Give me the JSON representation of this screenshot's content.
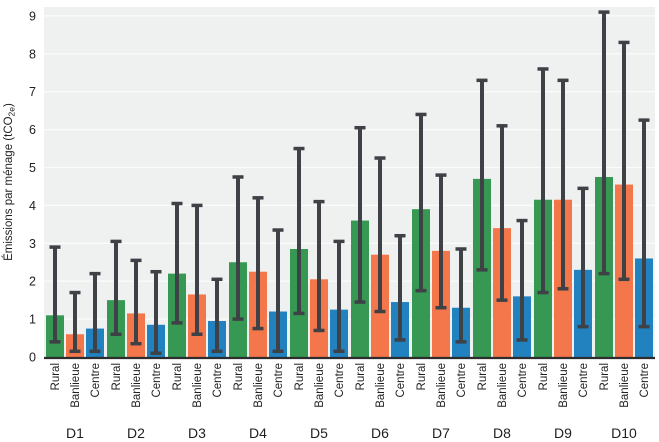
{
  "chart_data": {
    "type": "bar",
    "title": "",
    "ylabel_prefix": "Émissions par ménage (tCO",
    "ylabel_sub": "2e",
    "ylabel_suffix": ")",
    "categories": [
      "D1",
      "D2",
      "D3",
      "D4",
      "D5",
      "D6",
      "D7",
      "D8",
      "D9",
      "D10"
    ],
    "bar_labels": [
      "Rural",
      "Banlieue",
      "Centre"
    ],
    "series": [
      {
        "name": "Rural",
        "color": "#369852",
        "values": [
          1.1,
          1.5,
          2.2,
          2.5,
          2.85,
          3.6,
          3.9,
          4.7,
          4.15,
          4.75
        ],
        "err_low": [
          0.4,
          0.6,
          0.9,
          1.0,
          1.15,
          1.45,
          1.75,
          2.3,
          1.7,
          2.2
        ],
        "err_high": [
          2.9,
          3.05,
          4.05,
          4.75,
          5.5,
          6.05,
          6.4,
          7.3,
          7.6,
          9.1
        ]
      },
      {
        "name": "Banlieue",
        "color": "#F4764B",
        "values": [
          0.6,
          1.15,
          1.65,
          2.25,
          2.05,
          2.7,
          2.8,
          3.4,
          4.15,
          4.55
        ],
        "err_low": [
          0.15,
          0.35,
          0.6,
          0.75,
          0.7,
          1.2,
          1.3,
          1.5,
          1.8,
          2.05
        ],
        "err_high": [
          1.7,
          2.55,
          4.0,
          4.2,
          4.1,
          5.25,
          4.8,
          6.1,
          7.3,
          8.3
        ]
      },
      {
        "name": "Centre",
        "color": "#2281BF",
        "values": [
          0.75,
          0.85,
          0.95,
          1.2,
          1.25,
          1.45,
          1.3,
          1.6,
          2.3,
          2.6
        ],
        "err_low": [
          0.15,
          0.1,
          0.15,
          0.15,
          0.15,
          0.45,
          0.4,
          0.45,
          0.8,
          0.8
        ],
        "err_high": [
          2.2,
          2.25,
          2.05,
          3.35,
          3.05,
          3.2,
          2.85,
          3.6,
          4.45,
          6.25
        ]
      }
    ],
    "ylim": [
      0,
      9
    ],
    "yticks": [
      0,
      1,
      2,
      3,
      4,
      5,
      6,
      7,
      8,
      9
    ],
    "grid": "horizontal",
    "legend": "none",
    "error_bars": true,
    "colors": {
      "plot_bg": "#EFF1F1",
      "gridline": "#FAFBFB",
      "axis_line": "#2D2D2D",
      "error_bar": "#3E4146",
      "text": "#1F1F1F"
    }
  }
}
